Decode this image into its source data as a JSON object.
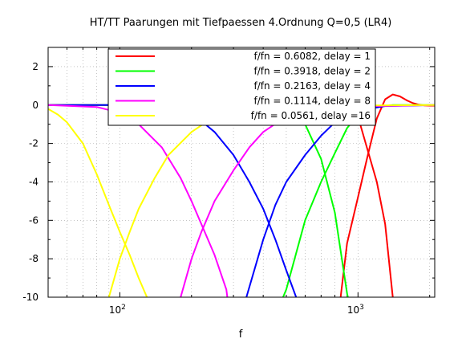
{
  "chart_data": {
    "type": "line",
    "title": "HT/TT Paarungen mit Tiefpaessen 4.Ordnung Q=0,5 (LR4)",
    "xlabel": "f",
    "ylabel": "",
    "xscale": "log",
    "xlim": [
      50,
      2100
    ],
    "ylim": [
      -10,
      3
    ],
    "grid": true,
    "legend_position": "top",
    "y_ticks": [
      {
        "value": 2,
        "label": "2"
      },
      {
        "value": 0,
        "label": "0"
      },
      {
        "value": -2,
        "label": "-2"
      },
      {
        "value": -4,
        "label": "-4"
      },
      {
        "value": -6,
        "label": "-6"
      },
      {
        "value": -8,
        "label": "-8"
      },
      {
        "value": -10,
        "label": "-10"
      }
    ],
    "x_ticks": [
      {
        "value": 100,
        "base": "10",
        "exp": "2"
      },
      {
        "value": 1000,
        "base": "10",
        "exp": "3"
      }
    ],
    "series": [
      {
        "name": "f/fn = 0.6082, delay = 1",
        "color": "#ff0000",
        "x": [
          50,
          200,
          500,
          700,
          800,
          900,
          1000,
          1100,
          1200,
          1300,
          1400,
          1500,
          1600,
          1700,
          1800,
          1900,
          2000,
          2100
        ],
        "y": [
          null,
          null,
          null,
          null,
          -12.5,
          -7.2,
          -4.8,
          -2.6,
          -0.7,
          0.3,
          0.55,
          0.45,
          0.25,
          0.1,
          0.02,
          -0.02,
          -0.03,
          -0.03
        ]
      },
      {
        "name": "f/fn = 0.6082, delay = 1",
        "color": "#ff0000",
        "x": [
          50,
          200,
          500,
          800,
          1000,
          1200,
          1300,
          1400,
          1500
        ],
        "y": [
          0,
          0,
          0,
          -0.1,
          -0.6,
          -4.0,
          -6.2,
          -10.0,
          -12.5
        ]
      },
      {
        "name": "f/fn = 0.3918, delay = 2",
        "color": "#00ff00",
        "x": [
          50,
          200,
          400,
          500,
          600,
          700,
          800,
          900,
          1000,
          1200,
          1400,
          1700,
          2100
        ],
        "y": [
          null,
          null,
          -12.5,
          -9.6,
          -6.0,
          -4.0,
          -2.5,
          -1.2,
          -0.5,
          -0.1,
          0,
          0,
          0
        ]
      },
      {
        "name": "f/fn = 0.3918, delay = 2",
        "color": "#00ff00",
        "x": [
          50,
          200,
          400,
          600,
          700,
          800,
          900,
          1000
        ],
        "y": [
          0,
          0,
          -0.05,
          -1.0,
          -2.8,
          -5.6,
          -9.8,
          -12.5
        ]
      },
      {
        "name": "f/fn = 0.2163, delay = 4",
        "color": "#0000ff",
        "x": [
          50,
          100,
          150,
          200,
          250,
          300,
          350,
          400,
          450,
          500,
          550,
          600
        ],
        "y": [
          0,
          0,
          -0.1,
          -0.4,
          -1.4,
          -2.6,
          -4.0,
          -5.4,
          -7.0,
          -8.6,
          -10.0,
          -12.5
        ]
      },
      {
        "name": "f/fn = 0.2163, delay = 4",
        "color": "#0000ff",
        "x": [
          300,
          340,
          400,
          450,
          500,
          600,
          700,
          800,
          1000,
          1300,
          2100
        ],
        "y": [
          -12.5,
          -10.0,
          -7.0,
          -5.2,
          -4.0,
          -2.6,
          -1.6,
          -0.9,
          -0.3,
          -0.05,
          0
        ]
      },
      {
        "name": "f/fn = 0.1114, delay = 8",
        "color": "#ff00ff",
        "x": [
          50,
          80,
          100,
          120,
          150,
          180,
          200,
          220,
          250,
          280,
          300
        ],
        "y": [
          0,
          -0.1,
          -0.4,
          -1.0,
          -2.2,
          -3.8,
          -5.0,
          -6.2,
          -7.8,
          -9.6,
          -12.5
        ]
      },
      {
        "name": "f/fn = 0.1114, delay = 8",
        "color": "#ff00ff",
        "x": [
          160,
          180,
          200,
          220,
          250,
          300,
          350,
          400,
          500,
          700,
          2100
        ],
        "y": [
          -12.5,
          -10.0,
          -8.0,
          -6.6,
          -5.0,
          -3.4,
          -2.2,
          -1.4,
          -0.6,
          -0.1,
          0
        ]
      },
      {
        "name": "f/fn = 0.0561, delay =16",
        "color": "#ffff00",
        "x": [
          50,
          55,
          60,
          70,
          80,
          90,
          100,
          110,
          120,
          130,
          150
        ],
        "y": [
          -0.2,
          -0.5,
          -0.9,
          -2.0,
          -3.6,
          -5.2,
          -6.6,
          -7.8,
          -9.0,
          -10.0,
          -12.5
        ]
      },
      {
        "name": "f/fn = 0.0561, delay =16",
        "color": "#ffff00",
        "x": [
          80,
          90,
          100,
          110,
          120,
          140,
          160,
          200,
          250,
          300,
          400,
          2100
        ],
        "y": [
          -12.5,
          -10.0,
          -8.0,
          -6.6,
          -5.4,
          -3.8,
          -2.6,
          -1.4,
          -0.6,
          -0.2,
          -0.05,
          0
        ]
      }
    ]
  }
}
